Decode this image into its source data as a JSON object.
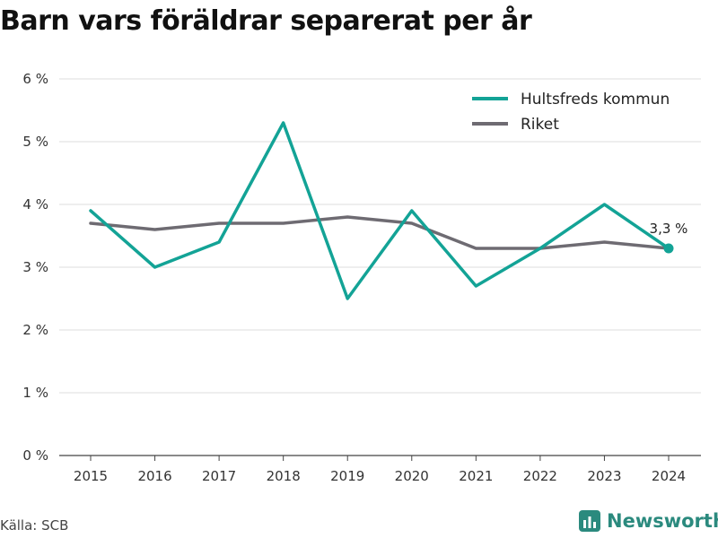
{
  "title": "Barn vars föräldrar separerat per år",
  "source": "Källa: SCB",
  "brand": "Newsworthy",
  "colors": {
    "series_0": "#13a396",
    "series_1": "#6e6b72",
    "grid": "#dddddd",
    "brand": "#2b8a7e"
  },
  "chart_data": {
    "type": "line",
    "x": [
      "2015",
      "2016",
      "2017",
      "2018",
      "2019",
      "2020",
      "2021",
      "2022",
      "2023",
      "2024"
    ],
    "series": [
      {
        "name": "Hultsfreds kommun",
        "values": [
          3.9,
          3.0,
          3.4,
          5.3,
          2.5,
          3.9,
          2.7,
          3.3,
          4.0,
          3.3
        ]
      },
      {
        "name": "Riket",
        "values": [
          3.7,
          3.6,
          3.7,
          3.7,
          3.8,
          3.7,
          3.3,
          3.3,
          3.4,
          3.3
        ]
      }
    ],
    "ylim": [
      0,
      6
    ],
    "yticks": [
      0,
      1,
      2,
      3,
      4,
      5,
      6
    ],
    "ytick_labels": [
      "0 %",
      "1 %",
      "2 %",
      "3 %",
      "4 %",
      "5 %",
      "6 %"
    ],
    "annotation": {
      "label": "3,3 %",
      "x": "2024",
      "y": 3.3
    },
    "legend": "top-right",
    "grid": true
  }
}
